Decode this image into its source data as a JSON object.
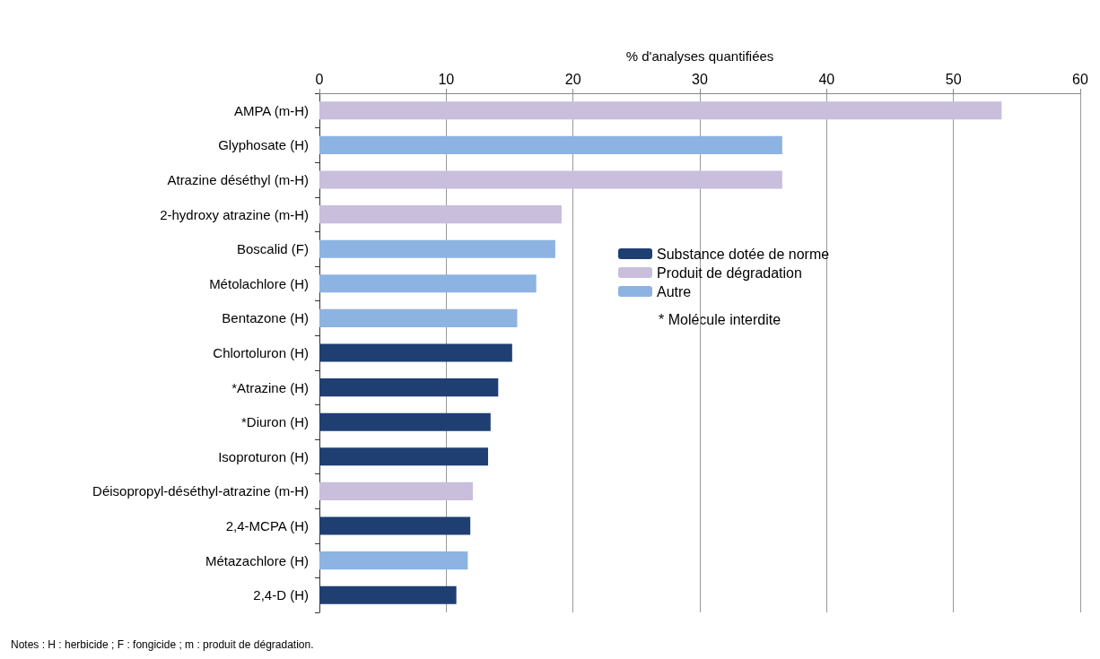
{
  "chart_data": {
    "type": "bar",
    "orientation": "horizontal",
    "stacked": true,
    "xlabel": "% d'analyses quantifiées",
    "categories": [
      "AMPA (m-H)",
      "Glyphosate (H)",
      "Atrazine déséthyl (m-H)",
      "2-hydroxy atrazine (m-H)",
      "Boscalid (F)",
      "Métolachlore (H)",
      "Bentazone (H)",
      "Chlortoluron (H)",
      "*Atrazine (H)",
      "*Diuron (H)",
      "Isoproturon (H)",
      "Déisopropyl-déséthyl-atrazine (m-H)",
      "2,4-MCPA (H)",
      "Métazachlore (H)",
      "2,4-D (H)"
    ],
    "series": [
      {
        "name": "Substance dotée de norme",
        "color": "#1f3f73",
        "values": [
          null,
          null,
          null,
          null,
          null,
          null,
          null,
          15.2,
          14.1,
          13.5,
          13.3,
          null,
          11.9,
          null,
          10.8
        ]
      },
      {
        "name": "Produit de dégradation",
        "color": "#c9bedb",
        "values": [
          53.8,
          null,
          36.5,
          19.1,
          null,
          null,
          null,
          null,
          null,
          null,
          null,
          12.1,
          null,
          null,
          null
        ]
      },
      {
        "name": "Autre",
        "color": "#8db3e2",
        "values": [
          null,
          36.5,
          null,
          null,
          18.6,
          17.1,
          15.6,
          null,
          null,
          null,
          null,
          null,
          null,
          11.7,
          null
        ]
      }
    ],
    "xlim": [
      0,
      60
    ],
    "xticks": [
      0,
      10,
      20,
      30,
      40,
      50,
      60
    ],
    "grid": "x",
    "legend": "right",
    "annotations": [
      "* Molécule interdite",
      "Notes : H : herbicide ; F : fongicide ; m : produit de dégradation."
    ]
  }
}
